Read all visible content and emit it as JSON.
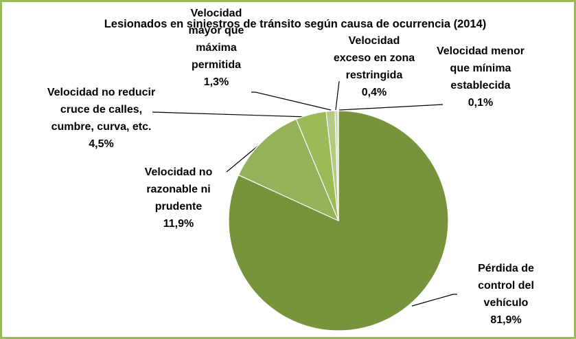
{
  "chart_data": {
    "type": "pie",
    "title": "Lesionados en siniestros de tránsito según causa de ocurrencia (2014)",
    "categories": [
      "Pérdida de control del vehículo",
      "Velocidad no razonable ni prudente",
      "Velocidad no reducir cruce de calles, cumbre, curva, etc.",
      "Velocidad mayor que máxima permitida",
      "Velocidad exceso en zona restringida",
      "Velocidad menor que mínima establecida"
    ],
    "values": [
      81.9,
      11.9,
      4.5,
      1.3,
      0.4,
      0.1
    ],
    "value_labels": [
      "81,9%",
      "11,9%",
      "4,5%",
      "1,3%",
      "0,4%",
      "0,1%"
    ],
    "colors": [
      "#77933c",
      "#93b25a",
      "#9bbb59",
      "#b3cb86",
      "#c5d8a0",
      "#d8e4bf"
    ]
  }
}
